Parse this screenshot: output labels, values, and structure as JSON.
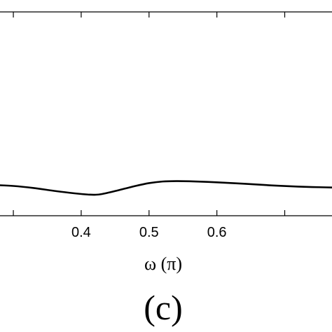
{
  "chart_data": {
    "type": "line",
    "xlabel": "ω (π)",
    "panel_label": "(c)",
    "xlim": [
      0.27,
      0.78
    ],
    "ylim": [
      0,
      1
    ],
    "grid": false,
    "x_ticks": [
      {
        "value": 0.3,
        "label": ""
      },
      {
        "value": 0.4,
        "label": "0.4"
      },
      {
        "value": 0.5,
        "label": "0.5"
      },
      {
        "value": 0.6,
        "label": "0.6"
      },
      {
        "value": 0.7,
        "label": ""
      }
    ],
    "series": [
      {
        "x": [
          0.27,
          0.3,
          0.33,
          0.36,
          0.39,
          0.41,
          0.42,
          0.43,
          0.45,
          0.48,
          0.5,
          0.52,
          0.54,
          0.56,
          0.6,
          0.64,
          0.68,
          0.72,
          0.75,
          0.78
        ],
        "y": [
          0.151,
          0.146,
          0.136,
          0.122,
          0.11,
          0.104,
          0.103,
          0.106,
          0.121,
          0.146,
          0.16,
          0.168,
          0.17,
          0.169,
          0.164,
          0.157,
          0.149,
          0.143,
          0.14,
          0.138
        ]
      }
    ]
  }
}
